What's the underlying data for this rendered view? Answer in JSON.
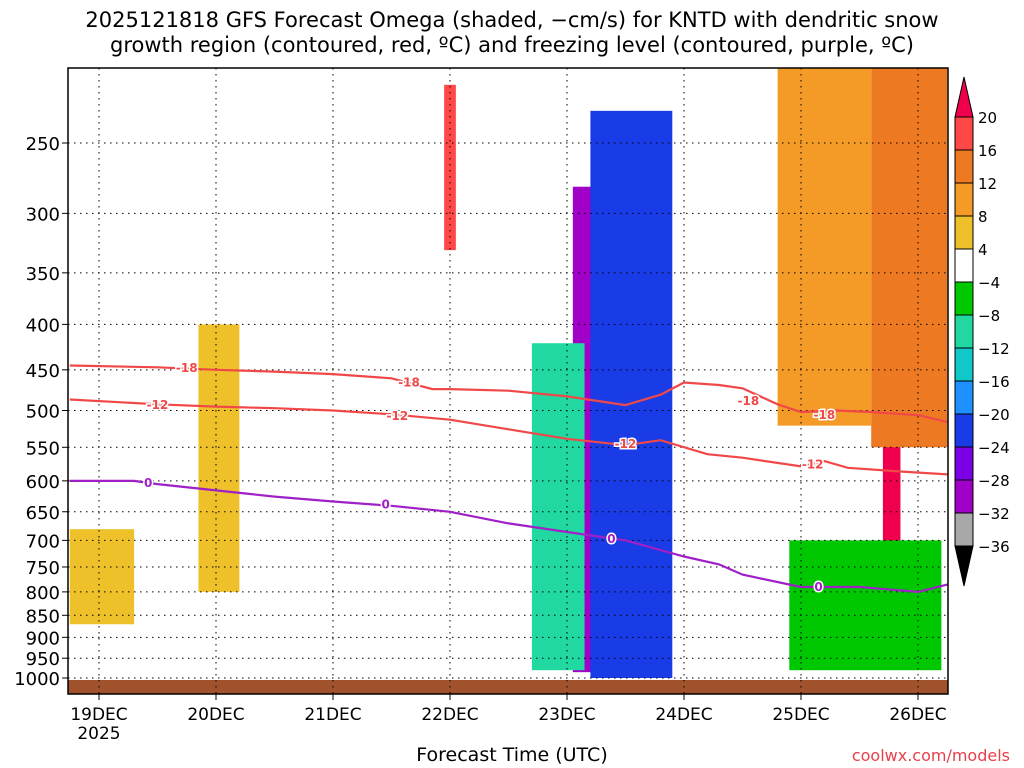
{
  "chart_data": {
    "type": "heatmap",
    "title_line1": "2025121818 GFS Forecast Omega (shaded, −cm/s) for KNTD with dendritic snow",
    "title_line2": "growth region (contoured, red, ºC) and freezing level (contoured, purple, ºC)",
    "xlabel": "Forecast Time (UTC)",
    "credit": "coolwx.com/models",
    "x_ticks": [
      "19DEC",
      "20DEC",
      "21DEC",
      "22DEC",
      "23DEC",
      "24DEC",
      "25DEC",
      "26DEC"
    ],
    "x_year": "2025",
    "x_range_days": [
      -0.25,
      7.25
    ],
    "y_ticks": [
      "250",
      "300",
      "350",
      "400",
      "450",
      "500",
      "550",
      "600",
      "650",
      "700",
      "750",
      "800",
      "850",
      "900",
      "950",
      "1000"
    ],
    "y_range_hpa": [
      200,
      1020
    ],
    "colorbar_labels": [
      "20",
      "16",
      "12",
      "8",
      "4",
      "−4",
      "−8",
      "−12",
      "−16",
      "−20",
      "−24",
      "−28",
      "−32",
      "−36"
    ],
    "colorbar_colors": [
      "#f0004c",
      "#fe4848",
      "#ed7a22",
      "#f49a26",
      "#eec12b",
      "#ffffff",
      "#00c800",
      "#20d8a0",
      "#10c8c8",
      "#1e90ff",
      "#1a3ce6",
      "#7b00e6",
      "#a000c8",
      "#a8a8a8",
      "#000000"
    ],
    "ground_color": "#a0522d",
    "contours": [
      {
        "name": "dgz-top",
        "label": "-18",
        "color": "#f04848",
        "points": [
          [
            -0.25,
            445
          ],
          [
            0.5,
            447
          ],
          [
            1.0,
            450
          ],
          [
            1.5,
            452
          ],
          [
            2.0,
            455
          ],
          [
            2.5,
            460
          ],
          [
            2.85,
            473
          ],
          [
            3.0,
            473
          ],
          [
            3.5,
            475
          ],
          [
            4.0,
            482
          ],
          [
            4.5,
            493
          ],
          [
            4.8,
            480
          ],
          [
            5.0,
            465
          ],
          [
            5.3,
            468
          ],
          [
            5.5,
            472
          ],
          [
            5.8,
            492
          ],
          [
            6.0,
            502
          ],
          [
            6.3,
            500
          ],
          [
            6.6,
            502
          ],
          [
            7.0,
            506
          ],
          [
            7.25,
            515
          ]
        ],
        "label_at": [
          [
            0.75,
            448
          ],
          [
            2.65,
            465
          ],
          [
            5.55,
            488
          ],
          [
            6.2,
            506
          ]
        ]
      },
      {
        "name": "dgz-bottom",
        "label": "-12",
        "color": "#f04848",
        "points": [
          [
            -0.25,
            486
          ],
          [
            0.5,
            492
          ],
          [
            1.0,
            495
          ],
          [
            1.5,
            497
          ],
          [
            2.0,
            500
          ],
          [
            2.5,
            505
          ],
          [
            3.0,
            512
          ],
          [
            3.5,
            525
          ],
          [
            4.0,
            538
          ],
          [
            4.5,
            547
          ],
          [
            4.8,
            540
          ],
          [
            5.2,
            560
          ],
          [
            5.5,
            565
          ],
          [
            6.0,
            578
          ],
          [
            6.2,
            570
          ],
          [
            6.4,
            580
          ],
          [
            6.8,
            585
          ],
          [
            7.25,
            590
          ]
        ],
        "label_at": [
          [
            0.5,
            493
          ],
          [
            2.55,
            507
          ],
          [
            4.5,
            545
          ],
          [
            6.1,
            575
          ]
        ]
      },
      {
        "name": "freezing-level",
        "label": "0",
        "color": "#a020c8",
        "points": [
          [
            -0.25,
            600
          ],
          [
            0.3,
            600
          ],
          [
            0.5,
            605
          ],
          [
            1.0,
            615
          ],
          [
            1.5,
            625
          ],
          [
            2.0,
            633
          ],
          [
            2.5,
            640
          ],
          [
            3.0,
            650
          ],
          [
            3.5,
            670
          ],
          [
            4.0,
            685
          ],
          [
            4.5,
            700
          ],
          [
            5.0,
            730
          ],
          [
            5.3,
            745
          ],
          [
            5.5,
            765
          ],
          [
            6.0,
            790
          ],
          [
            6.2,
            790
          ],
          [
            6.5,
            790
          ],
          [
            7.0,
            800
          ],
          [
            7.25,
            785
          ]
        ],
        "label_at": [
          [
            0.42,
            603
          ],
          [
            2.45,
            638
          ],
          [
            4.38,
            698
          ],
          [
            6.15,
            790
          ]
        ]
      }
    ],
    "shaded_regions": [
      {
        "x": [
          4.05,
          4.65
        ],
        "p": [
          280,
          985
        ],
        "value": -32
      },
      {
        "x": [
          4.2,
          4.9
        ],
        "p": [
          230,
          1000
        ],
        "value": -24
      },
      {
        "x": [
          3.7,
          4.15
        ],
        "p": [
          420,
          980
        ],
        "value": -12
      },
      {
        "x": [
          2.95,
          3.05
        ],
        "p": [
          215,
          330
        ],
        "value": 18
      },
      {
        "x": [
          6.7,
          6.85
        ],
        "p": [
          220,
          900
        ],
        "value": 20
      },
      {
        "x": [
          6.6,
          7.25
        ],
        "p": [
          200,
          550
        ],
        "value": 12
      },
      {
        "x": [
          5.8,
          6.6
        ],
        "p": [
          200,
          520
        ],
        "value": 8
      },
      {
        "x": [
          -0.25,
          0.3
        ],
        "p": [
          680,
          870
        ],
        "value": 5
      },
      {
        "x": [
          0.85,
          1.2
        ],
        "p": [
          400,
          800
        ],
        "value": 5
      },
      {
        "x": [
          5.9,
          7.2
        ],
        "p": [
          700,
          980
        ],
        "value": -8
      }
    ]
  }
}
